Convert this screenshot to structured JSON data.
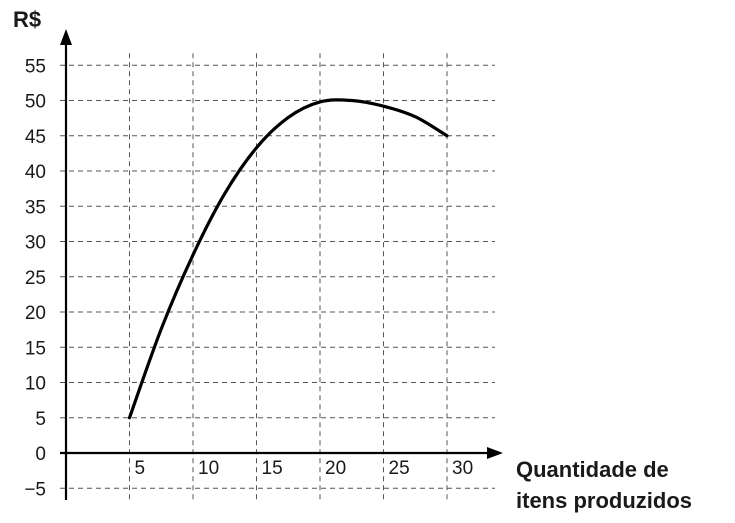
{
  "chart_data": {
    "type": "line",
    "title": "",
    "ylabel": "R$",
    "xlabel_lines": [
      "Quantidade de",
      "itens produzidos"
    ],
    "xlim": [
      0,
      30
    ],
    "ylim": [
      -5,
      55
    ],
    "x_ticks": [
      5,
      10,
      15,
      20,
      25,
      30
    ],
    "y_ticks": [
      -5,
      0,
      5,
      10,
      15,
      20,
      25,
      30,
      35,
      40,
      45,
      50,
      55
    ],
    "y_tick_labels": [
      "−5",
      "0",
      "5",
      "10",
      "15",
      "20",
      "25",
      "30",
      "35",
      "40",
      "45",
      "50",
      "55"
    ],
    "x_tick_labels": [
      "5",
      "10",
      "15",
      "20",
      "25",
      "30"
    ],
    "grid": true,
    "grid_style": "dashed",
    "series": [
      {
        "x": [
          5,
          7.5,
          10,
          12.5,
          15,
          17.5,
          20,
          22.5,
          25,
          27.5,
          30
        ],
        "y": [
          5,
          17.6,
          28.1,
          36.8,
          43.3,
          47.6,
          49.8,
          50,
          49.2,
          47.7,
          45
        ],
        "color": "#000000"
      }
    ]
  }
}
